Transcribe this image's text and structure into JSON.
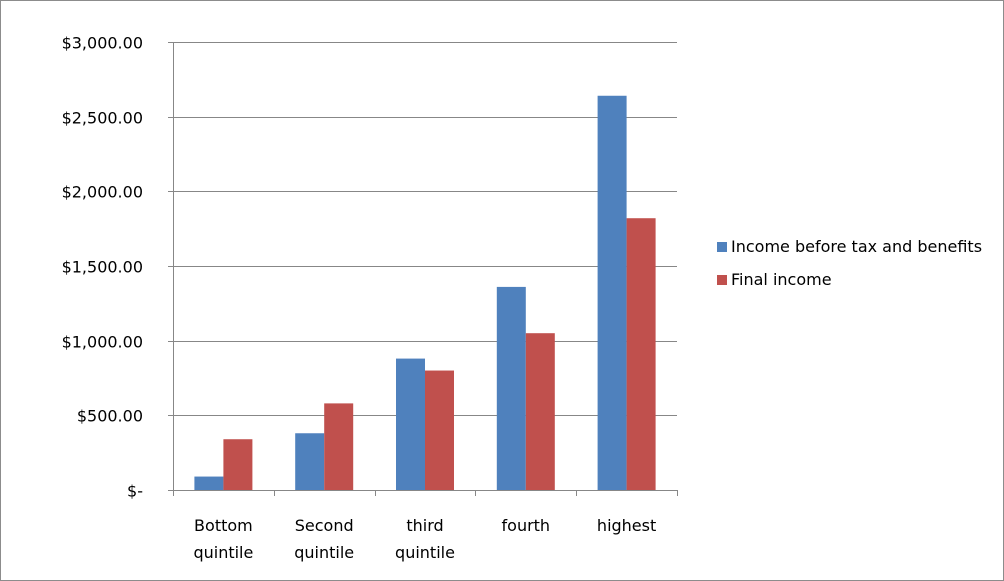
{
  "chart_data": {
    "type": "bar",
    "categories": [
      [
        "Bottom",
        "quintile"
      ],
      [
        "Second",
        "quintile"
      ],
      [
        "third",
        "quintile"
      ],
      [
        "fourth"
      ],
      [
        "highest"
      ]
    ],
    "series": [
      {
        "name": "Income before tax and benefits",
        "values": [
          90,
          380,
          880,
          1360,
          2640
        ],
        "color": "#4f81bd"
      },
      {
        "name": "Final income",
        "values": [
          340,
          580,
          800,
          1050,
          1820
        ],
        "color": "#c0504d"
      }
    ],
    "title": "",
    "xlabel": "",
    "ylabel": "",
    "ylim": [
      0,
      3000
    ],
    "yticks": [
      0,
      500,
      1000,
      1500,
      2000,
      2500,
      3000
    ],
    "ytick_labels": [
      "$-",
      "$500.00",
      "$1,000.00",
      "$1,500.00",
      "$2,000.00",
      "$2,500.00",
      "$3,000.00"
    ],
    "grid": true,
    "legend_position": "right"
  }
}
